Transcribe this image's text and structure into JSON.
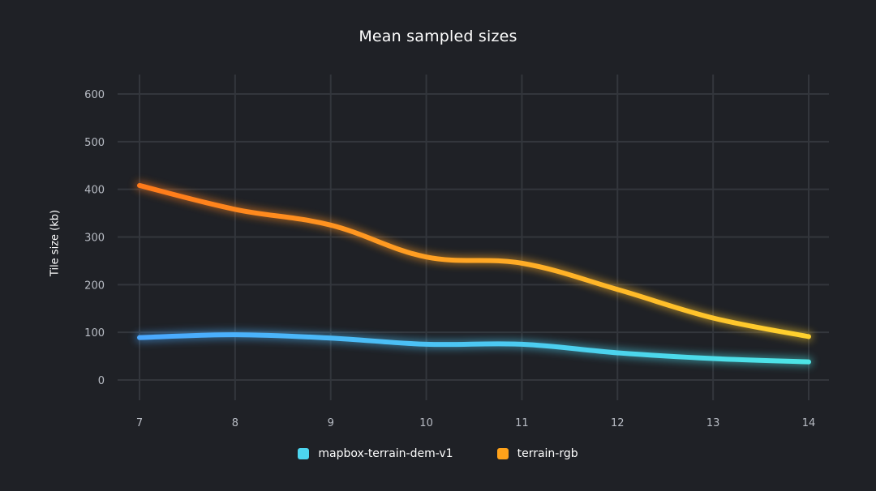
{
  "colors": {
    "background": "#1f2126",
    "grid": "#33363c",
    "tick_text": "#b8bcc4",
    "series_0_start": "#4aa8ff",
    "series_0_end": "#4de6e6",
    "series_1_start": "#ff7a1a",
    "series_1_end": "#ffd22e"
  },
  "chart_data": {
    "type": "line",
    "title": "Mean sampled sizes",
    "xlabel": "",
    "ylabel": "Tile size (kb)",
    "x": [
      7,
      8,
      9,
      10,
      11,
      12,
      13,
      14
    ],
    "xlim": [
      7,
      14
    ],
    "ylim": [
      0,
      600
    ],
    "yticks": [
      0,
      100,
      200,
      300,
      400,
      500,
      600
    ],
    "xticks": [
      7,
      8,
      9,
      10,
      11,
      12,
      13,
      14
    ],
    "grid": true,
    "legend_position": "bottom-center",
    "series": [
      {
        "name": "mapbox-terrain-dem-v1",
        "values": [
          89,
          95,
          88,
          75,
          75,
          57,
          45,
          38
        ]
      },
      {
        "name": "terrain-rgb",
        "values": [
          408,
          358,
          325,
          258,
          245,
          190,
          130,
          91
        ]
      }
    ]
  }
}
